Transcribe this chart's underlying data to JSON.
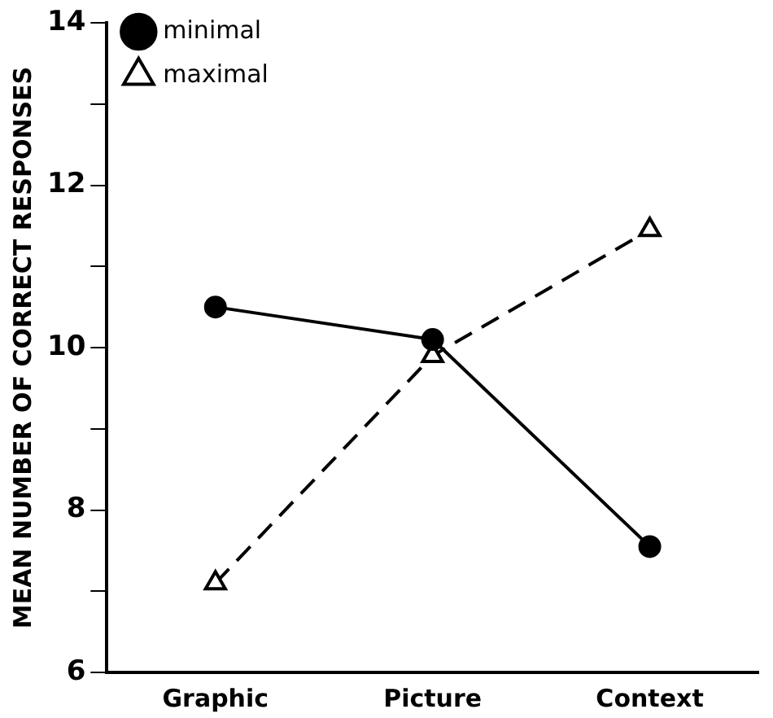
{
  "chart_data": {
    "type": "line",
    "ylabel": "MEAN NUMBER OF CORRECT RESPONSES",
    "categories": [
      "Graphic",
      "Picture",
      "Context"
    ],
    "series": [
      {
        "name": "minimal",
        "color": "#000000",
        "values": [
          10.5,
          10.1,
          7.55
        ],
        "marker": "circle",
        "line_style": "solid"
      },
      {
        "name": "maximal",
        "color": "#000000",
        "values": [
          7.1,
          9.9,
          11.45
        ],
        "marker": "triangle",
        "line_style": "dashed"
      }
    ],
    "ylim": [
      6,
      14
    ],
    "yticks": [
      6,
      {
        "value": 7,
        "label": null
      },
      8,
      {
        "value": 9,
        "label": null
      },
      10,
      {
        "value": 11,
        "label": null
      },
      12,
      {
        "value": 13,
        "label": null
      },
      14
    ],
    "grid": false,
    "legend": "top left"
  }
}
